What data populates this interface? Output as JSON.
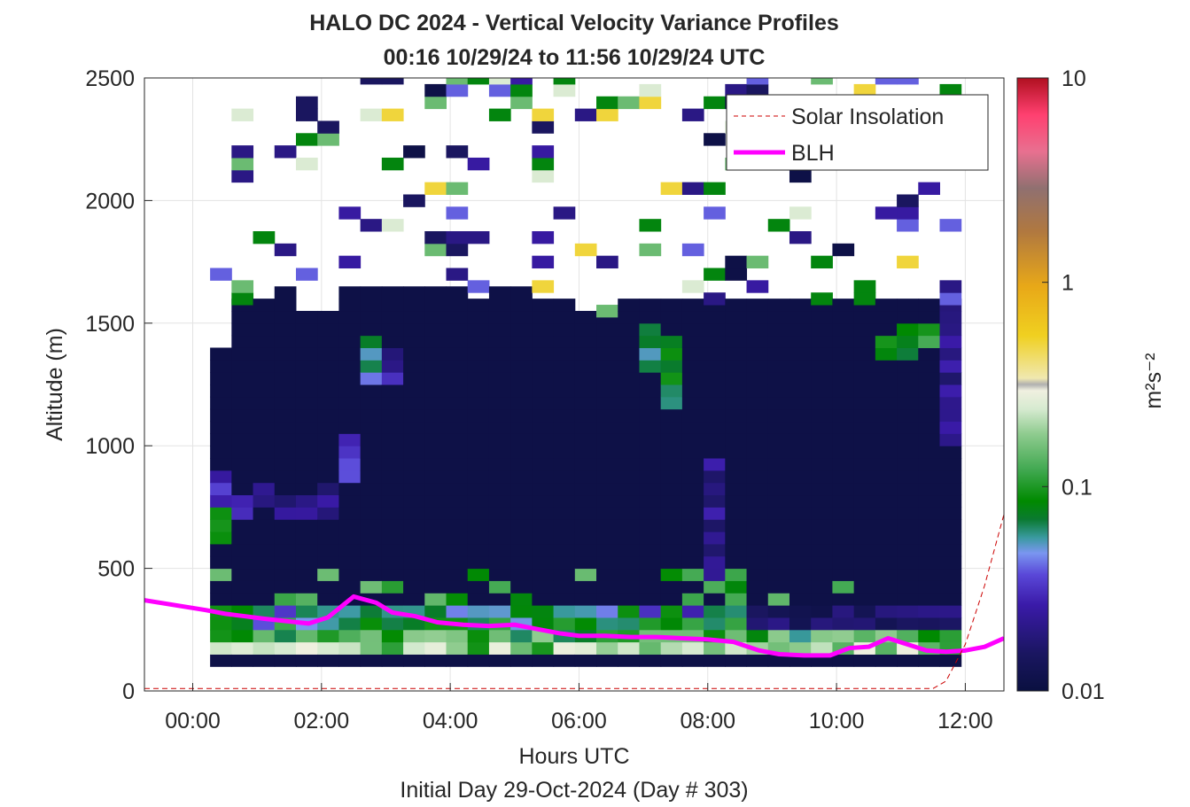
{
  "chart_data": {
    "type": "heatmap",
    "title": "HALO DC 2024 - Vertical Velocity Variance Profiles",
    "subtitle": "00:16 10/29/24 to 11:56 10/29/24  UTC",
    "xlabel": "Hours UTC",
    "xlabel2": "Initial Day 29-Oct-2024 (Day # 303)",
    "ylabel": "Altitude (m)",
    "xlim": [
      -0.75,
      12.6
    ],
    "ylim": [
      0,
      2500
    ],
    "x_ticks": [
      0,
      2,
      4,
      6,
      8,
      10,
      12
    ],
    "x_tick_labels": [
      "00:00",
      "02:00",
      "04:00",
      "06:00",
      "08:00",
      "10:00",
      "12:00"
    ],
    "y_ticks": [
      0,
      500,
      1000,
      1500,
      2000,
      2500
    ],
    "y_tick_labels": [
      "0",
      "500",
      "1000",
      "1500",
      "2000",
      "2500"
    ],
    "grid": true,
    "colorbar": {
      "label": "m²s⁻²",
      "scale": "log",
      "range": [
        0.01,
        10
      ],
      "ticks": [
        0.01,
        0.1,
        1,
        10
      ],
      "tick_labels": [
        "0.01",
        "0.1",
        "1",
        "10"
      ]
    },
    "legend": {
      "placement": "top-right",
      "entries": [
        {
          "label": "Solar Insolation",
          "color": "#cc0000",
          "style": "dashed"
        },
        {
          "label": "BLH",
          "color": "#ff00ff",
          "style": "solid"
        }
      ]
    },
    "heatmap": {
      "time_start": 0.27,
      "time_end": 11.93,
      "bin_hours": 0.3333,
      "alt_bin_m": 50,
      "bottom_alt_m": 100,
      "background_top_m": [
        1375,
        1575,
        1575,
        1625,
        1525,
        1525,
        1625,
        1625,
        1625,
        1625,
        1625,
        1625,
        1575,
        1625,
        1625,
        1575,
        1575,
        1525,
        1525,
        1575,
        1575,
        1575,
        1575,
        1575,
        1575,
        1575,
        1575,
        1575,
        1575,
        1575,
        1575,
        1575,
        1575,
        1575,
        1575
      ],
      "background_value": 0.011,
      "patches": [
        {
          "t": 0.3,
          "z0": 600,
          "z1": 750,
          "v": 0.08
        },
        {
          "t": 0.3,
          "z0": 750,
          "z1": 900,
          "v": 0.03
        },
        {
          "t": 0.6,
          "z0": 700,
          "z1": 800,
          "v": 0.025
        },
        {
          "t": 0.95,
          "z0": 750,
          "z1": 850,
          "v": 0.022
        },
        {
          "t": 1.3,
          "z0": 700,
          "z1": 800,
          "v": 0.02
        },
        {
          "t": 1.6,
          "z0": 700,
          "z1": 800,
          "v": 0.022
        },
        {
          "t": 1.9,
          "z0": 700,
          "z1": 850,
          "v": 0.02
        },
        {
          "t": 2.25,
          "z0": 850,
          "z1": 1050,
          "v": 0.03
        },
        {
          "t": 2.6,
          "z0": 1250,
          "z1": 1450,
          "v": 0.06
        },
        {
          "t": 2.95,
          "z0": 1250,
          "z1": 1400,
          "v": 0.025
        },
        {
          "t": 7.25,
          "z0": 1150,
          "z1": 1450,
          "v": 0.08
        },
        {
          "t": 7.0,
          "z0": 1300,
          "z1": 1500,
          "v": 0.07
        },
        {
          "t": 7.95,
          "z0": 450,
          "z1": 950,
          "v": 0.022
        },
        {
          "t": 10.8,
          "z0": 1350,
          "z1": 1450,
          "v": 0.08
        },
        {
          "t": 11.1,
          "z0": 1400,
          "z1": 1500,
          "v": 0.1
        },
        {
          "t": 11.5,
          "z0": 1000,
          "z1": 1650,
          "v": 0.025
        },
        {
          "t": 11.8,
          "z0": 1000,
          "z1": 1700,
          "v": 0.022
        }
      ],
      "surface_profile": {
        "z0": 100,
        "z1": 350,
        "low_values": [
          0.3,
          0.2,
          0.12,
          0.08,
          0.06,
          0.04
        ]
      },
      "top_scatter": {
        "z0": 1650,
        "z1": 2500,
        "density": 0.28
      }
    },
    "series": [
      {
        "name": "BLH",
        "color": "#ff00ff",
        "x": [
          -0.75,
          0.2,
          0.5,
          0.8,
          1.1,
          1.45,
          1.8,
          2.1,
          2.5,
          2.85,
          3.1,
          3.45,
          3.8,
          4.2,
          4.6,
          5.0,
          5.3,
          5.7,
          6.0,
          6.4,
          6.8,
          7.2,
          7.6,
          8.0,
          8.4,
          8.8,
          9.1,
          9.5,
          9.9,
          10.2,
          10.5,
          10.8,
          11.1,
          11.4,
          11.7,
          12.0,
          12.3,
          12.6
        ],
        "y": [
          370,
          330,
          315,
          305,
          295,
          285,
          275,
          300,
          385,
          360,
          320,
          305,
          280,
          270,
          265,
          270,
          255,
          235,
          225,
          225,
          220,
          220,
          215,
          210,
          200,
          165,
          150,
          145,
          145,
          175,
          180,
          215,
          190,
          165,
          160,
          165,
          180,
          215
        ]
      },
      {
        "name": "Solar Insolation",
        "color": "#cc0000",
        "x": [
          -0.75,
          11.5,
          11.7,
          12.0,
          12.3,
          12.6
        ],
        "y": [
          10,
          10,
          40,
          190,
          430,
          720
        ]
      }
    ]
  }
}
